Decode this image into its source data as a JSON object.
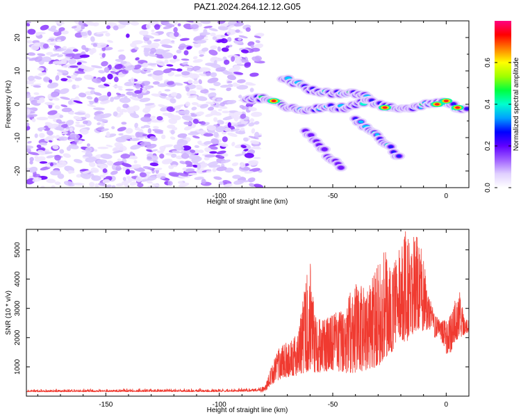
{
  "figure_title": "PAZ1.2024.264.12.12.G05",
  "chart_data": [
    {
      "type": "heatmap",
      "title": "PAZ1.2024.264.12.12.G05",
      "xlabel": "Height of straight line (km)",
      "ylabel": "Frequency (Hz)",
      "xlim": [
        -185,
        10
      ],
      "ylim": [
        -25,
        25
      ],
      "x_ticks": [
        -150,
        -100,
        -50,
        0
      ],
      "y_ticks": [
        -20,
        -10,
        0,
        10,
        20
      ],
      "colorbar": {
        "label": "Normalized spectral amplitude",
        "range": [
          0,
          0.8
        ],
        "ticks": [
          "0.0",
          "0.2",
          "0.4",
          "0.6"
        ],
        "colormap": [
          "#ffffff",
          "#e0d0ff",
          "#a060ff",
          "#6000ff",
          "#0000ff",
          "#00a0ff",
          "#00ffd0",
          "#00ff40",
          "#a0ff00",
          "#ffff00",
          "#ff8000",
          "#ff0000",
          "#ff0080"
        ]
      },
      "noise_region_x": [
        -185,
        -82
      ],
      "signal_trace": {
        "main_ridge": [
          [
            -88,
            2
          ],
          [
            -80,
            2
          ],
          [
            -75,
            1
          ],
          [
            -70,
            -1
          ],
          [
            -65,
            -2
          ],
          [
            -60,
            -2
          ],
          [
            -55,
            -1
          ],
          [
            -50,
            -1
          ],
          [
            -45,
            -1
          ],
          [
            -40,
            0
          ],
          [
            -35,
            1
          ],
          [
            -30,
            0
          ],
          [
            -25,
            -1
          ],
          [
            -20,
            -1
          ],
          [
            -15,
            -1
          ],
          [
            -10,
            0
          ],
          [
            -5,
            0
          ],
          [
            0,
            1
          ],
          [
            5,
            -1
          ],
          [
            10,
            -1
          ]
        ],
        "upper_branch": [
          [
            -72,
            8
          ],
          [
            -65,
            6
          ],
          [
            -58,
            4
          ],
          [
            -50,
            3
          ],
          [
            -42,
            4
          ],
          [
            -38,
            3
          ],
          [
            -32,
            1
          ]
        ],
        "lower_branch": [
          [
            -40,
            -5
          ],
          [
            -34,
            -7
          ],
          [
            -28,
            -11
          ],
          [
            -24,
            -13
          ],
          [
            -20,
            -17
          ]
        ],
        "faint_branch": [
          [
            -62,
            -8
          ],
          [
            -55,
            -13
          ],
          [
            -50,
            -17
          ],
          [
            -46,
            -19
          ]
        ],
        "peak_points": [
          [
            -76,
            1
          ],
          [
            -27,
            -1
          ],
          [
            -4,
            0
          ],
          [
            0,
            1
          ],
          [
            5,
            -1
          ]
        ]
      }
    },
    {
      "type": "line",
      "xlabel": "Height of straight line (km)",
      "ylabel": "SNR (10 * v/v)",
      "xlim": [
        -185,
        10
      ],
      "ylim": [
        0,
        5700
      ],
      "x_ticks": [
        -150,
        -100,
        -50,
        0
      ],
      "y_ticks": [
        1000,
        2000,
        3000,
        4000,
        5000
      ],
      "color": "#f03a30",
      "envelope": [
        [
          -185,
          100,
          250
        ],
        [
          -150,
          100,
          260
        ],
        [
          -120,
          100,
          270
        ],
        [
          -100,
          100,
          260
        ],
        [
          -85,
          100,
          300
        ],
        [
          -80,
          150,
          320
        ],
        [
          -78,
          300,
          800
        ],
        [
          -75,
          500,
          1500
        ],
        [
          -72,
          600,
          1800
        ],
        [
          -68,
          700,
          1900
        ],
        [
          -65,
          700,
          2300
        ],
        [
          -62,
          800,
          3900
        ],
        [
          -60,
          900,
          4700
        ],
        [
          -58,
          800,
          2800
        ],
        [
          -55,
          800,
          2600
        ],
        [
          -50,
          900,
          2800
        ],
        [
          -45,
          800,
          3000
        ],
        [
          -40,
          800,
          4000
        ],
        [
          -35,
          900,
          3600
        ],
        [
          -30,
          1000,
          4500
        ],
        [
          -27,
          1300,
          5000
        ],
        [
          -24,
          1500,
          4200
        ],
        [
          -22,
          1800,
          4900
        ],
        [
          -20,
          2000,
          5300
        ],
        [
          -18,
          1800,
          5750
        ],
        [
          -16,
          2000,
          5200
        ],
        [
          -14,
          2200,
          5500
        ],
        [
          -12,
          2300,
          5400
        ],
        [
          -10,
          2200,
          4800
        ],
        [
          -8,
          2300,
          3500
        ],
        [
          -5,
          2000,
          2900
        ],
        [
          -3,
          2100,
          2600
        ],
        [
          0,
          1400,
          2600
        ],
        [
          2,
          1500,
          2800
        ],
        [
          4,
          1900,
          3300
        ],
        [
          6,
          2000,
          3600
        ],
        [
          8,
          2100,
          2700
        ],
        [
          10,
          2200,
          2600
        ]
      ]
    }
  ]
}
